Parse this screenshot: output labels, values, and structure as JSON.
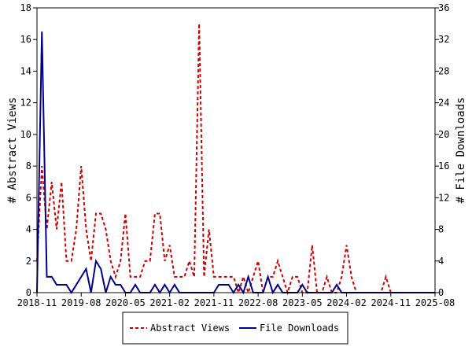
{
  "chart_data": {
    "type": "line",
    "x": [
      "2018-11",
      "2018-12",
      "2019-01",
      "2019-02",
      "2019-03",
      "2019-04",
      "2019-05",
      "2019-06",
      "2019-07",
      "2019-08",
      "2019-09",
      "2019-10",
      "2019-11",
      "2019-12",
      "2020-01",
      "2020-02",
      "2020-03",
      "2020-04",
      "2020-05",
      "2020-06",
      "2020-07",
      "2020-08",
      "2020-09",
      "2020-10",
      "2020-11",
      "2020-12",
      "2021-01",
      "2021-02",
      "2021-03",
      "2021-04",
      "2021-05",
      "2021-06",
      "2021-07",
      "2021-08",
      "2021-09",
      "2021-10",
      "2021-11",
      "2021-12",
      "2022-01",
      "2022-02",
      "2022-03",
      "2022-04",
      "2022-05",
      "2022-06",
      "2022-07",
      "2022-08",
      "2022-09",
      "2022-10",
      "2022-11",
      "2022-12",
      "2023-01",
      "2023-02",
      "2023-03",
      "2023-04",
      "2023-05",
      "2023-06",
      "2023-07",
      "2023-08",
      "2023-09",
      "2023-10",
      "2023-11",
      "2023-12",
      "2024-01",
      "2024-02",
      "2024-03",
      "2024-04",
      "2024-05",
      "2024-06",
      "2024-07",
      "2024-08",
      "2024-09",
      "2024-10",
      "2024-11",
      "2024-12",
      "2025-01",
      "2025-02",
      "2025-03",
      "2025-04",
      "2025-05",
      "2025-06",
      "2025-07",
      "2025-08"
    ],
    "series": [
      {
        "name": "Abstract Views",
        "axis": "left",
        "color": "#cc0000",
        "style": "dashed",
        "values": [
          2,
          8,
          4,
          7,
          4,
          7,
          2,
          2,
          4,
          8,
          4,
          2,
          5,
          5,
          4,
          2,
          1,
          2,
          5,
          1,
          1,
          1,
          2,
          2,
          5,
          5,
          2,
          3,
          1,
          1,
          1,
          2,
          1,
          17,
          1,
          4,
          1,
          1,
          1,
          1,
          1,
          0,
          1,
          0,
          1,
          2,
          0,
          1,
          1,
          2,
          1,
          0,
          1,
          1,
          0,
          0,
          3,
          0,
          0,
          1,
          0,
          0,
          1,
          3,
          1,
          0,
          0,
          0,
          0,
          0,
          0,
          1,
          0,
          0,
          0,
          0,
          0,
          0,
          0,
          0,
          0,
          0
        ]
      },
      {
        "name": "File Downloads",
        "axis": "right",
        "color": "#00008b",
        "style": "solid",
        "values": [
          0,
          33,
          2,
          2,
          1,
          1,
          1,
          0,
          1,
          2,
          3,
          0,
          4,
          3,
          0,
          2,
          1,
          1,
          0,
          0,
          1,
          0,
          0,
          0,
          1,
          0,
          1,
          0,
          1,
          0,
          0,
          0,
          0,
          0,
          0,
          0,
          0,
          1,
          1,
          1,
          0,
          1,
          0,
          2,
          0,
          0,
          0,
          2,
          0,
          1,
          0,
          0,
          0,
          0,
          1,
          0,
          0,
          0,
          0,
          0,
          0,
          1,
          0,
          0,
          0,
          0,
          0,
          0,
          0,
          0,
          0,
          0,
          0,
          0,
          0,
          0,
          0,
          0,
          0,
          0,
          0,
          0
        ]
      }
    ],
    "xticks": [
      "2018-11",
      "2019-08",
      "2020-05",
      "2021-02",
      "2021-11",
      "2022-08",
      "2023-05",
      "2024-02",
      "2024-11",
      "2025-08"
    ],
    "ylabel": "# Abstract Views",
    "y2label": "# File Downloads",
    "ylim": [
      0,
      18
    ],
    "y2lim": [
      0,
      36
    ],
    "yticks": [
      "0",
      "2",
      "4",
      "6",
      "8",
      "10",
      "12",
      "14",
      "16",
      "18"
    ],
    "y2ticks": [
      "0",
      "4",
      "8",
      "12",
      "16",
      "20",
      "24",
      "28",
      "32",
      "36"
    ],
    "grid": false,
    "legend": "bottom-center"
  }
}
